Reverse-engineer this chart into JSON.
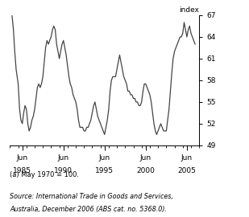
{
  "ylabel": "index",
  "footnote": "(a) May 1970 = 100.",
  "source_line1": "Source: International Trade in Goods and Services,",
  "source_line2": "Australia, December 2006 (ABS cat. no. 5368.0).",
  "xlim_start": 1984.0,
  "xlim_end": 2007.0,
  "ylim_bottom": 49,
  "ylim_top": 67,
  "yticks": [
    49,
    52,
    55,
    58,
    61,
    64,
    67
  ],
  "xtick_positions": [
    1985.5,
    1990.5,
    1995.5,
    2000.5,
    2005.5
  ],
  "xtick_labels_line1": [
    "Jun",
    "Jun",
    "Jun",
    "Jun",
    "Jun"
  ],
  "xtick_labels_line2": [
    "1985",
    "1990",
    "1995",
    "2000",
    "2005"
  ],
  "line_color": "#444444",
  "line_width": 0.9,
  "data_x": [
    1984.25,
    1984.42,
    1984.58,
    1984.75,
    1985.0,
    1985.17,
    1985.33,
    1985.5,
    1985.67,
    1985.83,
    1986.0,
    1986.17,
    1986.33,
    1986.5,
    1986.67,
    1986.83,
    1987.0,
    1987.17,
    1987.33,
    1987.5,
    1987.67,
    1987.83,
    1988.0,
    1988.17,
    1988.33,
    1988.5,
    1988.67,
    1988.83,
    1989.0,
    1989.17,
    1989.33,
    1989.5,
    1989.67,
    1989.83,
    1990.0,
    1990.17,
    1990.33,
    1990.5,
    1990.67,
    1990.83,
    1991.0,
    1991.17,
    1991.33,
    1991.5,
    1991.67,
    1991.83,
    1992.0,
    1992.17,
    1992.33,
    1992.5,
    1992.67,
    1992.83,
    1993.0,
    1993.17,
    1993.33,
    1993.5,
    1993.67,
    1993.83,
    1994.0,
    1994.17,
    1994.33,
    1994.5,
    1994.67,
    1994.83,
    1995.0,
    1995.17,
    1995.33,
    1995.5,
    1995.67,
    1995.83,
    1996.0,
    1996.17,
    1996.33,
    1996.5,
    1996.67,
    1996.83,
    1997.0,
    1997.17,
    1997.33,
    1997.5,
    1997.67,
    1997.83,
    1998.0,
    1998.17,
    1998.33,
    1998.5,
    1998.67,
    1998.83,
    1999.0,
    1999.17,
    1999.33,
    1999.5,
    1999.67,
    1999.83,
    2000.0,
    2000.17,
    2000.33,
    2000.5,
    2000.67,
    2000.83,
    2001.0,
    2001.17,
    2001.33,
    2001.5,
    2001.67,
    2001.83,
    2002.0,
    2002.17,
    2002.33,
    2002.5,
    2002.67,
    2002.83,
    2003.0,
    2003.17,
    2003.33,
    2003.5,
    2003.67,
    2003.83,
    2004.0,
    2004.17,
    2004.33,
    2004.5,
    2004.67,
    2004.83,
    2005.0,
    2005.17,
    2005.33,
    2005.5,
    2005.67,
    2005.83,
    2006.0,
    2006.17,
    2006.33,
    2006.5
  ],
  "data_y": [
    67.0,
    65.0,
    62.0,
    59.5,
    57.5,
    54.0,
    52.5,
    52.0,
    53.5,
    54.5,
    54.0,
    52.0,
    51.0,
    51.5,
    52.5,
    53.0,
    54.0,
    55.5,
    57.0,
    57.5,
    57.0,
    57.5,
    58.5,
    60.5,
    62.5,
    63.5,
    63.0,
    63.5,
    64.0,
    65.0,
    65.5,
    65.0,
    63.0,
    62.0,
    61.0,
    62.0,
    63.0,
    63.5,
    62.5,
    61.5,
    60.0,
    58.5,
    57.5,
    57.0,
    56.0,
    55.5,
    55.0,
    54.0,
    52.5,
    51.5,
    51.5,
    51.5,
    51.0,
    51.0,
    51.5,
    51.5,
    52.0,
    52.5,
    53.5,
    54.5,
    55.0,
    54.0,
    53.0,
    52.5,
    52.0,
    51.5,
    51.0,
    50.5,
    51.5,
    52.5,
    54.0,
    56.5,
    58.0,
    58.5,
    58.5,
    58.5,
    59.5,
    60.5,
    61.5,
    60.5,
    59.5,
    58.5,
    58.0,
    57.5,
    56.5,
    56.5,
    56.0,
    56.0,
    55.5,
    55.5,
    55.0,
    55.0,
    54.5,
    54.5,
    55.0,
    56.5,
    57.5,
    57.5,
    57.0,
    56.5,
    56.0,
    55.0,
    53.5,
    52.0,
    51.0,
    50.5,
    51.0,
    51.5,
    52.0,
    51.5,
    51.0,
    51.0,
    51.0,
    52.5,
    54.0,
    56.5,
    59.0,
    61.0,
    62.0,
    62.5,
    63.0,
    63.5,
    64.0,
    64.0,
    64.5,
    66.0,
    65.0,
    64.0,
    65.0,
    65.5,
    64.5,
    64.0,
    63.5,
    63.0
  ]
}
